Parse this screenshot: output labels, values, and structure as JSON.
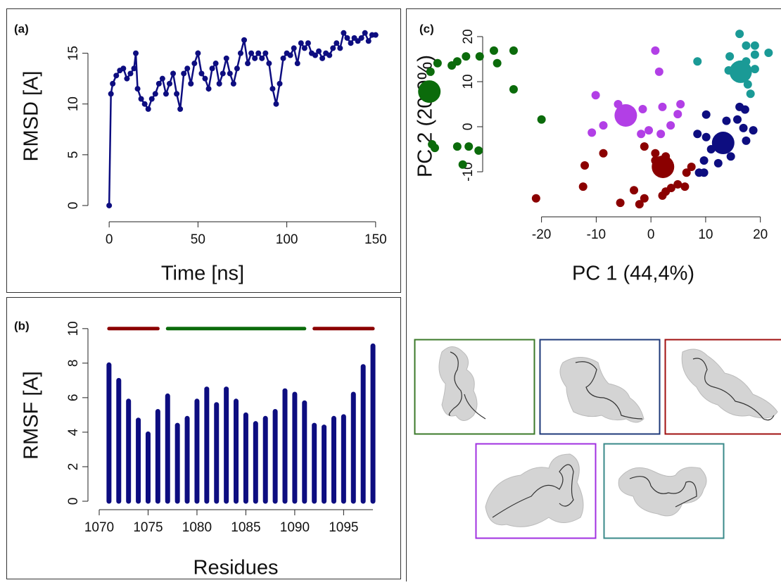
{
  "chart_data": [
    {
      "type": "line",
      "panel_label": "(a)",
      "xlabel": "Time [ns]",
      "ylabel": "RMSD [A]",
      "color": "#0d0d80",
      "markers": true,
      "x": [
        0,
        1,
        2,
        4,
        6,
        8,
        10,
        12,
        14,
        15,
        16,
        18,
        20,
        22,
        24,
        26,
        28,
        30,
        32,
        34,
        36,
        38,
        40,
        42,
        44,
        46,
        48,
        50,
        52,
        54,
        56,
        58,
        60,
        62,
        64,
        66,
        68,
        70,
        72,
        74,
        76,
        78,
        80,
        82,
        84,
        86,
        88,
        90,
        92,
        94,
        96,
        98,
        100,
        102,
        104,
        106,
        108,
        110,
        112,
        114,
        116,
        118,
        120,
        122,
        124,
        126,
        128,
        130,
        132,
        134,
        136,
        138,
        140,
        142,
        144,
        146,
        148,
        150
      ],
      "values": [
        0,
        11,
        12,
        12.8,
        13.3,
        13.5,
        12.5,
        13,
        13.5,
        15,
        11.5,
        10.5,
        10,
        9.5,
        10.5,
        11,
        12,
        12.5,
        11,
        12,
        13,
        11,
        9.5,
        13,
        13.5,
        12,
        14,
        15,
        13,
        12.5,
        11.5,
        13.5,
        14,
        12,
        13,
        14.5,
        13,
        12,
        13.5,
        15,
        16.3,
        14,
        15,
        14.5,
        15,
        14.5,
        15,
        14,
        11.5,
        10,
        12,
        14.5,
        15,
        14.8,
        15.5,
        14,
        16,
        15.5,
        16,
        15,
        14.8,
        15.2,
        14.5,
        15,
        14.8,
        15.5,
        16,
        15.5,
        17,
        16.5,
        16,
        16.5,
        16.2,
        16.5,
        17,
        16.2,
        16.8,
        16.8
      ],
      "xlim": [
        -6,
        156
      ],
      "ylim": [
        -0.6,
        17.4
      ],
      "xticks": [
        0,
        50,
        100,
        150
      ],
      "yticks": [
        0,
        5,
        10,
        15
      ]
    },
    {
      "type": "bar",
      "panel_label": "(b)",
      "xlabel": "Residues",
      "ylabel": "RMSF [A]",
      "color": "#0d0d80",
      "x": [
        1071,
        1072,
        1073,
        1074,
        1075,
        1076,
        1077,
        1078,
        1079,
        1080,
        1081,
        1082,
        1083,
        1084,
        1085,
        1086,
        1087,
        1088,
        1089,
        1090,
        1091,
        1092,
        1093,
        1094,
        1095,
        1096,
        1097,
        1098
      ],
      "values": [
        7.9,
        7.0,
        5.8,
        4.7,
        3.9,
        5.2,
        6.1,
        4.4,
        4.8,
        5.8,
        6.5,
        5.6,
        6.5,
        5.8,
        5.0,
        4.5,
        4.8,
        5.2,
        6.4,
        6.2,
        5.7,
        4.4,
        4.3,
        4.8,
        4.9,
        6.2,
        7.8,
        9.0
      ],
      "segments": [
        {
          "start": 1071,
          "end": 1076,
          "y": 10,
          "color": "#8b0000"
        },
        {
          "start": 1077,
          "end": 1091,
          "y": 10,
          "color": "#0b6b0b"
        },
        {
          "start": 1092,
          "end": 1098,
          "y": 10,
          "color": "#8b0000"
        }
      ],
      "xlim": [
        1070,
        1098.5
      ],
      "ylim": [
        0,
        10.4
      ],
      "xticks": [
        1070,
        1075,
        1080,
        1085,
        1090,
        1095
      ],
      "yticks": [
        0,
        2,
        4,
        6,
        8,
        10
      ]
    },
    {
      "type": "scatter",
      "panel_label": "(c)",
      "xlabel": "PC 1 (44,4%)",
      "ylabel": "PC 2 (20,9%)",
      "xlim": [
        -44,
        23
      ],
      "ylim": [
        -19,
        23
      ],
      "xticks": [
        -20,
        -10,
        0,
        10,
        20
      ],
      "yticks": [
        -10,
        0,
        10,
        20
      ],
      "series": [
        {
          "color": "#0b6b0b",
          "centroid": {
            "x": -40.5,
            "y": 7.8
          },
          "x": [
            -40.3,
            -39,
            -36.4,
            -35.4,
            -33.8,
            -31.3,
            -28.7,
            -28.1,
            -25.1,
            -25.1,
            -20,
            -40,
            -39.5,
            -35.4,
            -33.3,
            -31.5,
            -34.4
          ],
          "values": [
            12.2,
            14.1,
            13.6,
            14.5,
            15.6,
            15.6,
            16.9,
            14.1,
            16.9,
            8.3,
            1.6,
            -3.9,
            -4.7,
            -4.4,
            -4.4,
            -5.3,
            -8.4
          ]
        },
        {
          "color": "#0d0d80",
          "centroid": {
            "x": 13.2,
            "y": -3.6
          },
          "x": [
            10.1,
            16.2,
            17.2,
            13.8,
            15.8,
            18.7,
            8.5,
            10.1,
            17.4,
            11,
            9.7,
            12.3,
            14.6,
            8.8,
            9.7,
            16.9
          ],
          "values": [
            2.7,
            4.4,
            3.8,
            1.3,
            1.6,
            -0.8,
            -1.6,
            -2.3,
            -3.1,
            -5,
            -7.5,
            -8.1,
            -6.6,
            -10.2,
            -10.2,
            -0.3
          ]
        },
        {
          "color": "#8b0000",
          "centroid": {
            "x": 2.2,
            "y": -8.9
          },
          "x": [
            -1.2,
            0.8,
            2.7,
            0.8,
            -8.7,
            -12.1,
            -12.4,
            -3.1,
            -1.2,
            -2.1,
            -5.6,
            4.9,
            6.2,
            3.7,
            2.7,
            6.5,
            7.4,
            -21,
            2.1
          ],
          "values": [
            -4.4,
            -5.9,
            -6.6,
            -7.5,
            -5.9,
            -8.6,
            -13.3,
            -14.1,
            -15.9,
            -17.2,
            -16.9,
            -12.8,
            -13.3,
            -13.6,
            -14.4,
            -10.2,
            -8.9,
            -15.9,
            -15.3
          ]
        },
        {
          "color": "#b23fe6",
          "centroid": {
            "x": -4.6,
            "y": 2.5
          },
          "x": [
            0.8,
            1.5,
            -10.1,
            -6,
            -8.7,
            -10.8,
            -1.5,
            2.1,
            5.4,
            4.9,
            -0.4,
            -1.8,
            1.8,
            3.6
          ],
          "values": [
            16.9,
            12.2,
            7,
            5,
            0.3,
            -1.3,
            3.9,
            4.4,
            5,
            2.8,
            -0.8,
            -1.6,
            -1.6,
            0.3
          ]
        },
        {
          "color": "#1a9a96",
          "centroid": {
            "x": 16.4,
            "y": 12.2
          },
          "x": [
            16.2,
            14.4,
            17.4,
            19,
            19,
            21.5,
            8.5,
            17.4,
            19,
            17.7,
            18.2,
            14.2
          ],
          "values": [
            20.6,
            15.6,
            18,
            18,
            16,
            16.4,
            14.5,
            14.5,
            12.8,
            9.4,
            7.3,
            12.5
          ]
        }
      ]
    }
  ]
}
